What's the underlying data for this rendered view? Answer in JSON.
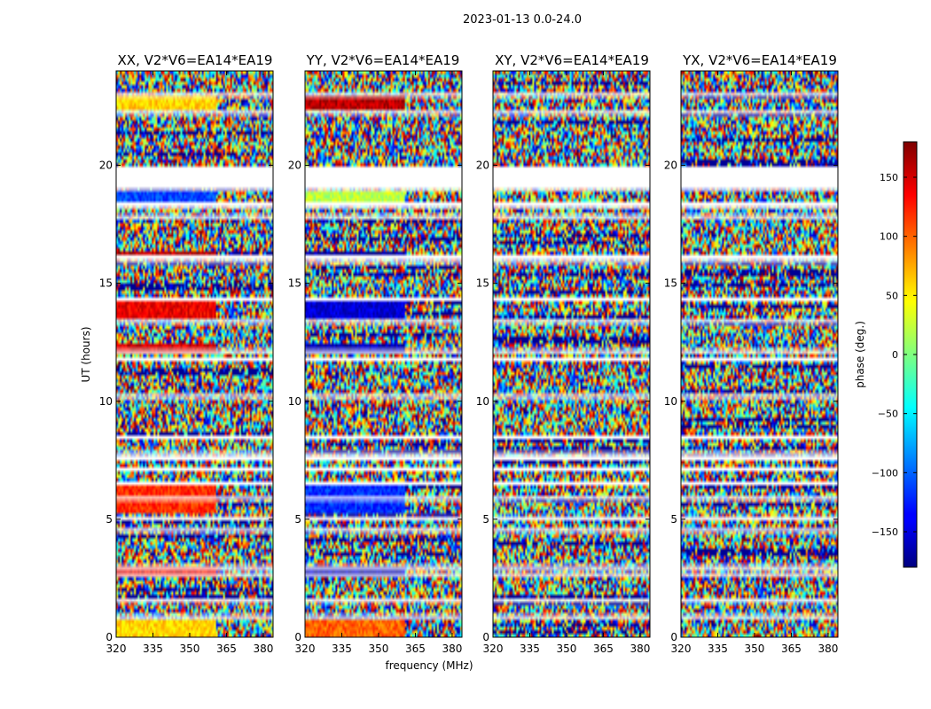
{
  "suptitle": "2023-01-13 0.0-24.0",
  "chart_data": {
    "type": "heatmap",
    "xlabel": "frequency (MHz)",
    "ylabel": "UT (hours)",
    "xlim": [
      320,
      384
    ],
    "ylim": [
      0,
      24
    ],
    "xticks": [
      320,
      335,
      350,
      365,
      380
    ],
    "yticks": [
      0,
      5,
      10,
      15,
      20
    ],
    "colormap": "jet",
    "colorbar": {
      "label": "phase (deg.)",
      "range": [
        -180,
        180
      ],
      "ticks": [
        -150,
        -100,
        -50,
        0,
        50,
        100,
        150
      ],
      "tick_labels": [
        "−150",
        "−100",
        "−50",
        "0",
        "50",
        "100",
        "150"
      ]
    },
    "gaps_ut_hours": [
      [
        0.85,
        0.95
      ],
      [
        1.55,
        1.62
      ],
      [
        2.6,
        2.75
      ],
      [
        2.95,
        3.05
      ],
      [
        4.55,
        4.6
      ],
      [
        5.05,
        5.12
      ],
      [
        5.9,
        5.95
      ],
      [
        6.5,
        6.6
      ],
      [
        7.1,
        7.2
      ],
      [
        7.55,
        7.65
      ],
      [
        7.75,
        7.85
      ],
      [
        8.45,
        8.55
      ],
      [
        10.2,
        10.28
      ],
      [
        11.75,
        11.85
      ],
      [
        12.1,
        12.2
      ],
      [
        13.3,
        13.45
      ],
      [
        14.3,
        14.4
      ],
      [
        15.9,
        16.0
      ],
      [
        16.1,
        16.2
      ],
      [
        17.75,
        17.9
      ],
      [
        18.2,
        18.45
      ],
      [
        18.95,
        19.95
      ],
      [
        22.2,
        22.3
      ],
      [
        22.95,
        23.05
      ]
    ],
    "panels": [
      {
        "title": "XX, V2*V6=EA14*EA19",
        "coherent_segments": [
          {
            "ut": [
              0.0,
              0.8
            ],
            "phase_deg": 60
          },
          {
            "ut": [
              2.6,
              2.95
            ],
            "phase_deg": 140
          },
          {
            "ut": [
              5.2,
              6.5
            ],
            "phase_deg": 120
          },
          {
            "ut": [
              11.95,
              12.4
            ],
            "phase_deg": 150
          },
          {
            "ut": [
              13.5,
              14.3
            ],
            "phase_deg": 140
          },
          {
            "ut": [
              16.2,
              16.4
            ],
            "phase_deg": 160
          },
          {
            "ut": [
              18.45,
              18.95
            ],
            "phase_deg": -110
          },
          {
            "ut": [
              22.3,
              22.95
            ],
            "phase_deg": 60
          }
        ]
      },
      {
        "title": "YY, V2*V6=EA14*EA19",
        "coherent_segments": [
          {
            "ut": [
              0.0,
              0.8
            ],
            "phase_deg": 100
          },
          {
            "ut": [
              2.6,
              2.95
            ],
            "phase_deg": -160
          },
          {
            "ut": [
              5.2,
              6.5
            ],
            "phase_deg": -120
          },
          {
            "ut": [
              11.95,
              12.4
            ],
            "phase_deg": -160
          },
          {
            "ut": [
              13.5,
              14.3
            ],
            "phase_deg": -150
          },
          {
            "ut": [
              16.2,
              16.4
            ],
            "phase_deg": -170
          },
          {
            "ut": [
              18.45,
              18.95
            ],
            "phase_deg": 20
          },
          {
            "ut": [
              22.3,
              22.95
            ],
            "phase_deg": 160
          }
        ]
      },
      {
        "title": "XY, V2*V6=EA14*EA19",
        "coherent_segments": []
      },
      {
        "title": "YX, V2*V6=EA14*EA19",
        "coherent_segments": []
      }
    ]
  }
}
